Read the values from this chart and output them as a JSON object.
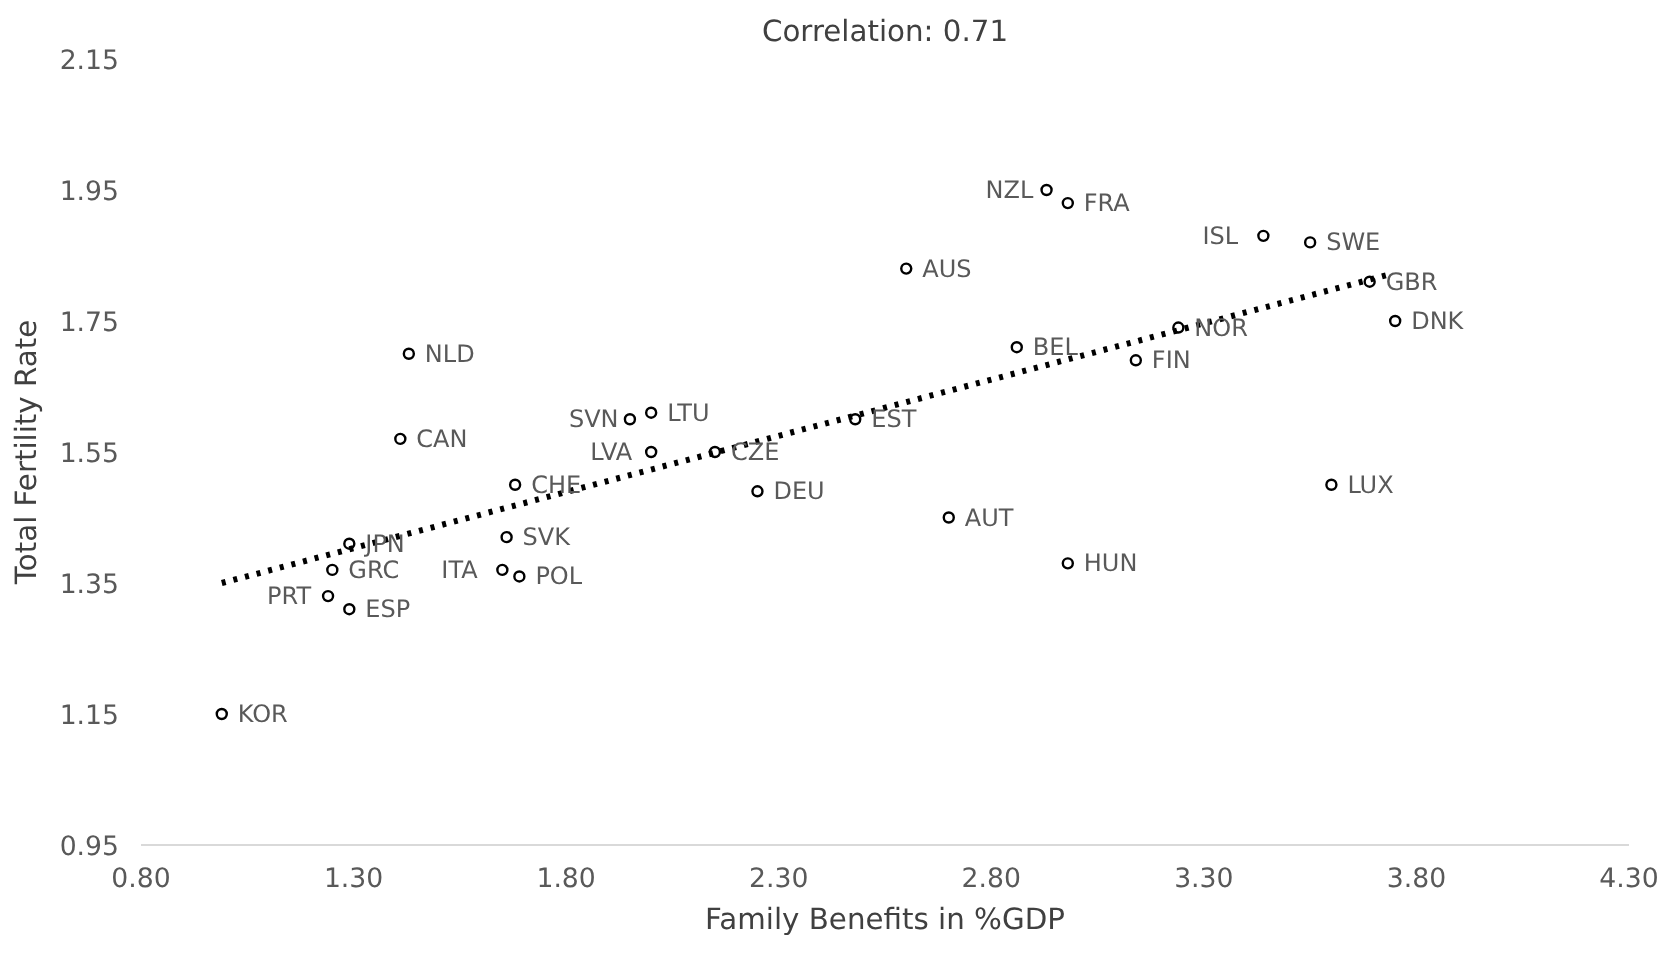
{
  "chart_data": {
    "type": "scatter",
    "title": "Correlation: 0.71",
    "xlabel": "Family Benefits in %GDP",
    "ylabel": "Total Fertility Rate",
    "xlim": [
      0.8,
      4.3
    ],
    "ylim": [
      0.95,
      2.15
    ],
    "xticks": [
      {
        "value": 0.8,
        "label": "0.80"
      },
      {
        "value": 1.3,
        "label": "1.30"
      },
      {
        "value": 1.8,
        "label": "1.80"
      },
      {
        "value": 2.3,
        "label": "2.30"
      },
      {
        "value": 2.8,
        "label": "2.80"
      },
      {
        "value": 3.3,
        "label": "3.30"
      },
      {
        "value": 3.8,
        "label": "3.80"
      },
      {
        "value": 4.3,
        "label": "4.30"
      }
    ],
    "yticks": [
      0.95,
      1.15,
      1.35,
      1.55,
      1.75,
      1.95,
      2.15
    ],
    "grid": false,
    "series": [
      {
        "marker": "circle",
        "color": "#000000",
        "x": [
          1.43,
          1.41,
          2.0,
          1.95,
          2.0,
          2.15,
          2.48,
          1.68,
          2.25,
          1.29,
          1.66,
          1.25,
          1.65,
          1.69,
          1.24,
          1.29,
          0.99,
          2.93,
          2.98,
          2.6,
          3.44,
          3.55,
          3.69,
          3.75,
          3.24,
          2.86,
          3.14,
          3.6,
          2.7,
          2.98
        ],
        "values": [
          1.7,
          1.57,
          1.61,
          1.6,
          1.55,
          1.55,
          1.6,
          1.5,
          1.49,
          1.41,
          1.42,
          1.37,
          1.37,
          1.36,
          1.33,
          1.31,
          1.15,
          1.95,
          1.93,
          1.83,
          1.88,
          1.87,
          1.81,
          1.75,
          1.74,
          1.71,
          1.69,
          1.5,
          1.45,
          1.38
        ]
      },
      {
        "type": "line",
        "color": "#000000",
        "line_style": "dotted",
        "x": [
          0.99,
          3.73
        ],
        "values": [
          1.35,
          1.82
        ]
      }
    ],
    "annotations": [
      {
        "text": "NLD",
        "x": 1.43,
        "y": 1.7
      },
      {
        "text": "CAN",
        "x": 1.41,
        "y": 1.57
      },
      {
        "text": "LTU",
        "x": 2.0,
        "y": 1.61
      },
      {
        "text": "SVN",
        "x": 1.95,
        "y": 1.6
      },
      {
        "text": "LVA",
        "x": 2.0,
        "y": 1.55
      },
      {
        "text": "CZE",
        "x": 2.15,
        "y": 1.55
      },
      {
        "text": "EST",
        "x": 2.48,
        "y": 1.6
      },
      {
        "text": "CHE",
        "x": 1.68,
        "y": 1.5
      },
      {
        "text": "DEU",
        "x": 2.25,
        "y": 1.49
      },
      {
        "text": "JPN",
        "x": 1.29,
        "y": 1.41
      },
      {
        "text": "SVK",
        "x": 1.66,
        "y": 1.42
      },
      {
        "text": "GRC",
        "x": 1.25,
        "y": 1.37
      },
      {
        "text": "ITA",
        "x": 1.65,
        "y": 1.37
      },
      {
        "text": "POL",
        "x": 1.69,
        "y": 1.36
      },
      {
        "text": "PRT",
        "x": 1.24,
        "y": 1.33
      },
      {
        "text": "ESP",
        "x": 1.29,
        "y": 1.31
      },
      {
        "text": "KOR",
        "x": 0.99,
        "y": 1.15
      },
      {
        "text": "NZL",
        "x": 2.93,
        "y": 1.95
      },
      {
        "text": "FRA",
        "x": 2.98,
        "y": 1.93
      },
      {
        "text": "AUS",
        "x": 2.6,
        "y": 1.83
      },
      {
        "text": "ISL",
        "x": 3.44,
        "y": 1.88
      },
      {
        "text": "SWE",
        "x": 3.55,
        "y": 1.87
      },
      {
        "text": "GBR",
        "x": 3.69,
        "y": 1.81
      },
      {
        "text": "DNK",
        "x": 3.75,
        "y": 1.75
      },
      {
        "text": "NOR",
        "x": 3.24,
        "y": 1.74
      },
      {
        "text": "BEL",
        "x": 2.86,
        "y": 1.71
      },
      {
        "text": "FIN",
        "x": 3.14,
        "y": 1.69
      },
      {
        "text": "LUX",
        "x": 3.6,
        "y": 1.5
      },
      {
        "text": "AUT",
        "x": 2.7,
        "y": 1.45
      },
      {
        "text": "HUN",
        "x": 2.98,
        "y": 1.38
      }
    ]
  }
}
